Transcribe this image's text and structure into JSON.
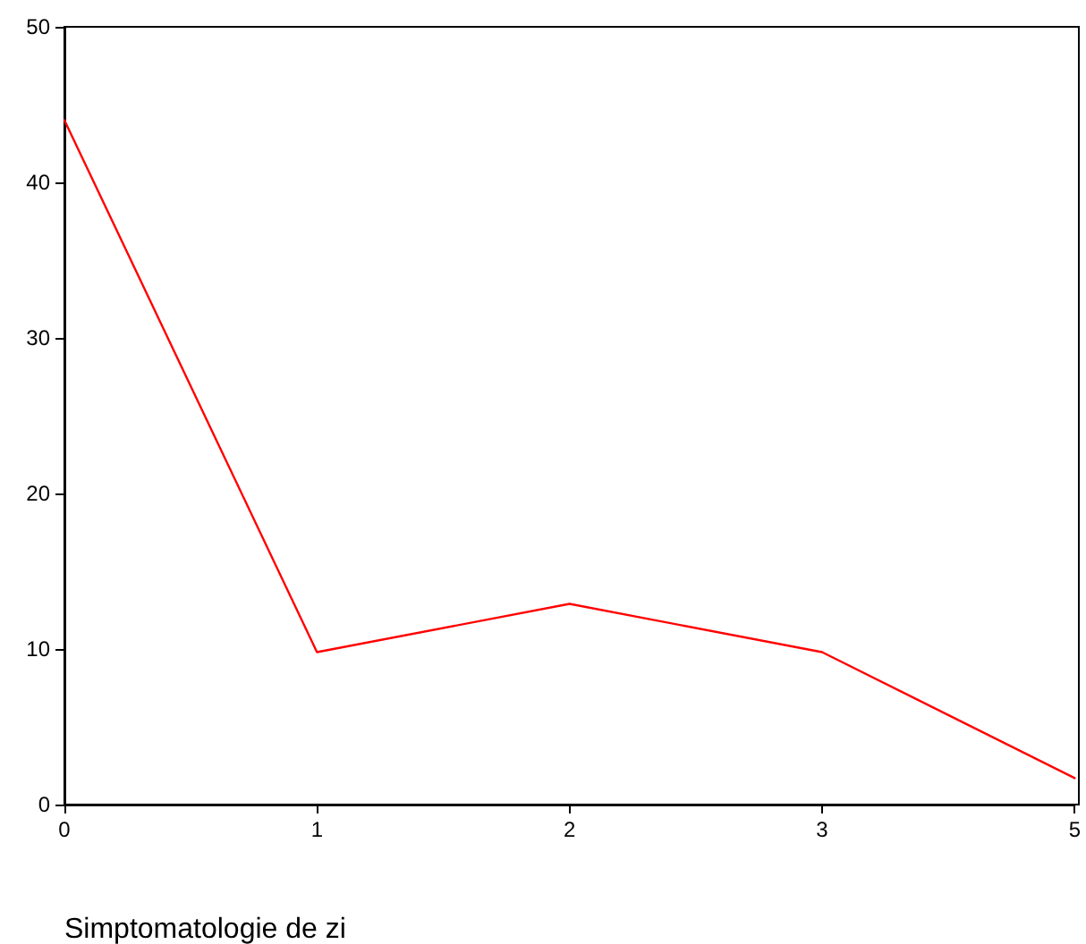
{
  "chart_data": {
    "type": "line",
    "xlabel": "Simptomatologie de zi",
    "categories": [
      "0",
      "1",
      "2",
      "3",
      "5"
    ],
    "series": [
      {
        "color": "#ff0000",
        "values": [
          44,
          9.8,
          12.9,
          9.8,
          1.7
        ]
      }
    ],
    "ylim": [
      0,
      50
    ],
    "yticks": [
      0,
      10,
      20,
      30,
      40,
      50
    ],
    "grid": false,
    "marker": "none"
  }
}
